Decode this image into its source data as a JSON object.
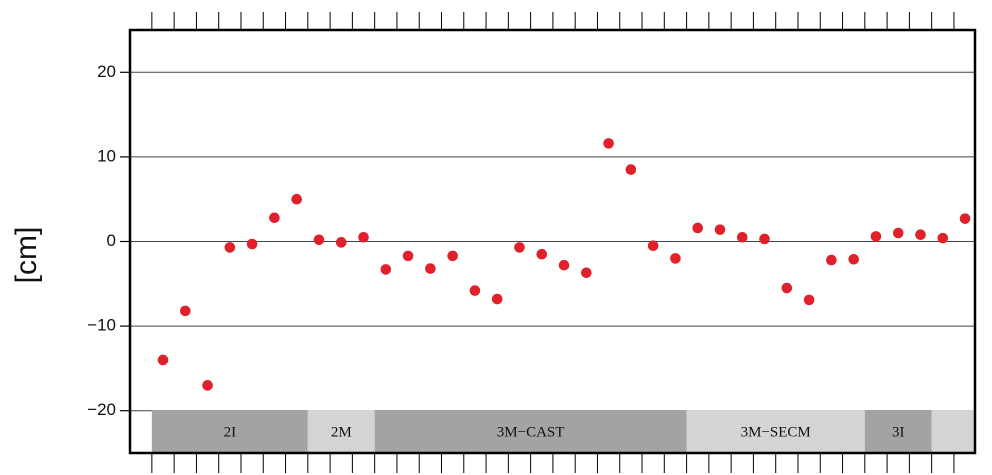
{
  "chart_data": {
    "type": "scatter",
    "y_label": "[cm]",
    "values": [
      -14,
      -8.2,
      -17,
      -0.7,
      -0.3,
      2.8,
      5,
      0.2,
      -0.1,
      0.5,
      -3.3,
      -1.7,
      -3.2,
      -1.7,
      -5.8,
      -6.8,
      -0.7,
      -1.5,
      -2.8,
      -3.7,
      11.6,
      8.5,
      -0.5,
      -2,
      1.6,
      1.4,
      0.5,
      0.3,
      -5.5,
      -6.9,
      -2.2,
      -2.1,
      0.6,
      1.0,
      0.8,
      0.4,
      2.7
    ],
    "color": "#e0202a",
    "ylim": [
      -25,
      25
    ],
    "yticks": [
      {
        "value": -20,
        "label": "−20"
      },
      {
        "value": -10,
        "label": "−10"
      },
      0,
      10,
      20
    ],
    "grid": true,
    "groups": [
      {
        "label": "2I",
        "span": 7,
        "color": "#a3a3a3"
      },
      {
        "label": "2M",
        "span": 3,
        "color": "#d4d4d4"
      },
      {
        "label": "3M−CAST",
        "span": 14,
        "color": "#a3a3a3"
      },
      {
        "label": "3M−SECM",
        "span": 8,
        "color": "#d4d4d4"
      },
      {
        "label": "3I",
        "span": 3,
        "color": "#a3a3a3"
      },
      {
        "label": null,
        "span": 2,
        "color": "#d4d4d4"
      }
    ]
  }
}
